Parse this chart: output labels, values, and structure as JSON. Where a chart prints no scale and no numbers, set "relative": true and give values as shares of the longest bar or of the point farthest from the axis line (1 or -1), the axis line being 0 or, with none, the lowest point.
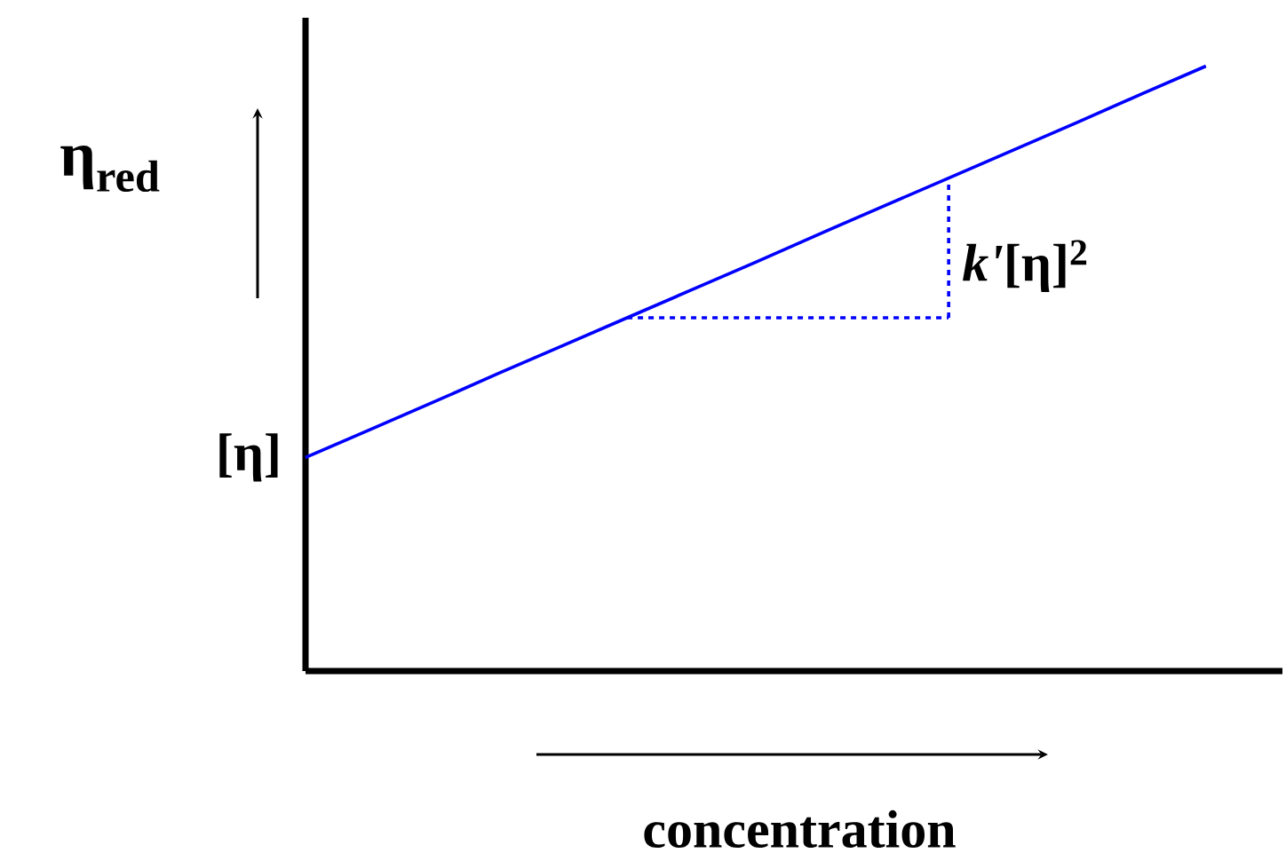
{
  "chart_data": {
    "type": "line",
    "relative": true,
    "xlabel": "concentration",
    "ylabel": "η$_{red}$",
    "marker": "none",
    "categories": [
      null,
      null,
      null,
      null,
      null,
      null,
      null,
      null,
      null,
      null,
      null,
      null,
      null,
      null,
      null
    ],
    "series": [
      {
        "color": "#0000ff",
        "values": [
          0.353,
          0.399,
          0.445,
          0.492,
          0.538,
          0.584,
          0.63,
          0.676,
          0.723,
          0.769,
          0.815,
          0.861,
          0.907,
          0.954,
          1
        ],
        "line_style": "solid"
      },
      {
        "color": "#0000ff",
        "values": [
          null,
          null,
          null,
          null,
          null,
          0.584,
          null,
          null,
          null,
          null,
          0.584,
          null,
          null,
          null,
          null
        ],
        "line_style": "dashed"
      }
    ],
    "annotations": [
      "[η]",
      "*k'*[η]$^{2}$"
    ]
  }
}
